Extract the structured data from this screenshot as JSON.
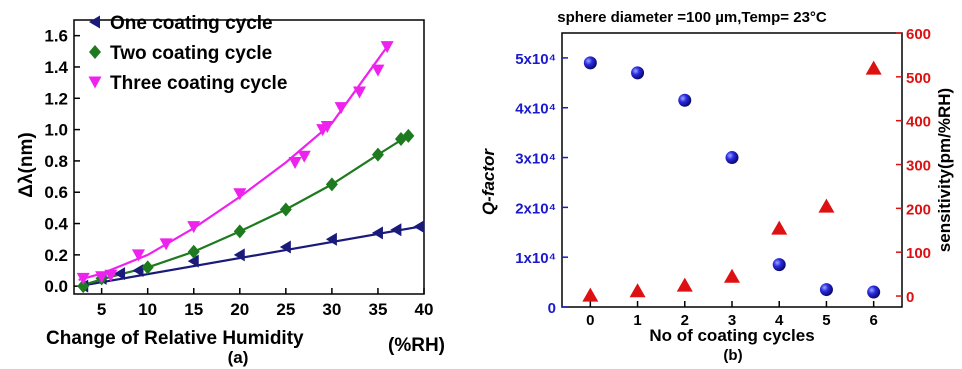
{
  "chart_data": [
    {
      "type": "line",
      "panel_label": "(a)",
      "xlabel": "Change of Relative Humidity",
      "xlabel_unit": "(%RH)",
      "ylabel": "Δλ(nm)",
      "xlim": [
        2,
        40
      ],
      "ylim": [
        -0.05,
        1.7
      ],
      "x_ticks": [
        5,
        10,
        15,
        20,
        25,
        30,
        35,
        40
      ],
      "y_ticks": [
        0.0,
        0.2,
        0.4,
        0.6,
        0.8,
        1.0,
        1.2,
        1.4,
        1.6
      ],
      "y_tick_labels": [
        "0.0",
        "0.2",
        "0.4",
        "0.6",
        "0.8",
        "1.0",
        "1.2",
        "1.4",
        "1.6"
      ],
      "legend_position": "top-left",
      "series": [
        {
          "name": "One coating cycle",
          "marker": "triangle-left",
          "color": "#1a1a7a",
          "x": [
            3,
            5,
            7,
            9,
            15,
            20,
            25,
            30,
            35,
            37,
            39.5
          ],
          "y": [
            0.0,
            0.05,
            0.08,
            0.1,
            0.16,
            0.2,
            0.25,
            0.3,
            0.34,
            0.36,
            0.38
          ],
          "fit_x": [
            2.5,
            40
          ],
          "fit_y": [
            0.0,
            0.385
          ]
        },
        {
          "name": "Two coating cycle",
          "marker": "diamond",
          "color": "#1e7a1e",
          "x": [
            3,
            5,
            10,
            15,
            20,
            25,
            30,
            35,
            37.5,
            38.3
          ],
          "y": [
            0.0,
            0.05,
            0.12,
            0.22,
            0.35,
            0.49,
            0.65,
            0.84,
            0.94,
            0.96
          ],
          "fit_x": [
            2.5,
            6,
            10,
            15,
            20,
            25,
            30,
            35,
            38.5
          ],
          "fit_y": [
            0.0,
            0.06,
            0.12,
            0.22,
            0.35,
            0.49,
            0.65,
            0.84,
            0.97
          ]
        },
        {
          "name": "Three coating cycle",
          "marker": "triangle-down",
          "color": "#ee22ee",
          "x": [
            3,
            5,
            6,
            9,
            12,
            15,
            20,
            26,
            27,
            29,
            29.5,
            31,
            33,
            35,
            36
          ],
          "y": [
            0.05,
            0.06,
            0.07,
            0.2,
            0.27,
            0.38,
            0.59,
            0.79,
            0.83,
            1.0,
            1.02,
            1.14,
            1.24,
            1.38,
            1.53
          ],
          "fit_x": [
            2.5,
            5,
            10,
            15,
            20,
            25,
            30,
            36
          ],
          "fit_y": [
            0.04,
            0.08,
            0.2,
            0.37,
            0.57,
            0.79,
            1.04,
            1.53
          ]
        }
      ]
    },
    {
      "type": "scatter",
      "panel_label": "(b)",
      "title": "sphere diameter =100 µm,Temp= 23°C",
      "xlabel": "No of coating cycles",
      "ylabel_left": "Q-factor",
      "ylabel_right": "sensitivity(pm/%RH)",
      "xlim": [
        -0.6,
        6.6
      ],
      "ylim_left": [
        0,
        55000
      ],
      "ylim_right": [
        -25,
        600
      ],
      "x_ticks": [
        0,
        1,
        2,
        3,
        4,
        5,
        6
      ],
      "y_left_ticks": [
        0,
        10000,
        20000,
        30000,
        40000,
        50000
      ],
      "y_left_tick_labels": [
        "0",
        "1x10⁴",
        "2x10⁴",
        "3x10⁴",
        "4x10⁴",
        "5x10⁴"
      ],
      "y_right_ticks": [
        0,
        100,
        200,
        300,
        400,
        500,
        600
      ],
      "left_axis_color": "#1a1acc",
      "right_axis_color": "#dd1111",
      "series": [
        {
          "axis": "left",
          "marker": "sphere",
          "color": "#1a1acc",
          "x": [
            0,
            1,
            2,
            3,
            4,
            5,
            6
          ],
          "y": [
            49000,
            47000,
            41500,
            30000,
            8500,
            3500,
            3000
          ]
        },
        {
          "axis": "right",
          "marker": "triangle-up",
          "color": "#dd1111",
          "x": [
            0,
            1,
            2,
            3,
            4,
            5,
            6
          ],
          "y": [
            2,
            12,
            25,
            45,
            155,
            205,
            520
          ]
        }
      ]
    }
  ]
}
